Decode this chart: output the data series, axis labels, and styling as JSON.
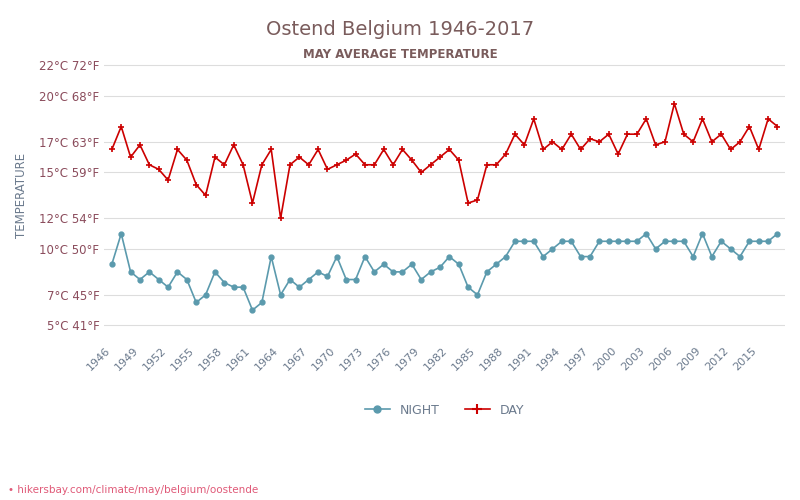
{
  "title": "Ostend Belgium 1946-2017",
  "subtitle": "MAY AVERAGE TEMPERATURE",
  "ylabel": "TEMPERATURE",
  "url_text": "hikersbay.com/climate/may/belgium/oostende",
  "years": [
    1946,
    1947,
    1948,
    1949,
    1950,
    1951,
    1952,
    1953,
    1954,
    1955,
    1956,
    1957,
    1958,
    1959,
    1960,
    1961,
    1962,
    1963,
    1964,
    1965,
    1966,
    1967,
    1968,
    1969,
    1970,
    1971,
    1972,
    1973,
    1974,
    1975,
    1976,
    1977,
    1978,
    1979,
    1980,
    1981,
    1982,
    1983,
    1984,
    1985,
    1986,
    1987,
    1988,
    1989,
    1990,
    1991,
    1992,
    1993,
    1994,
    1995,
    1996,
    1997,
    1998,
    1999,
    2000,
    2001,
    2002,
    2003,
    2004,
    2005,
    2006,
    2007,
    2008,
    2009,
    2010,
    2011,
    2012,
    2013,
    2014,
    2015,
    2016,
    2017
  ],
  "day_temps": [
    16.5,
    18.0,
    16.0,
    16.8,
    15.5,
    15.2,
    14.5,
    16.5,
    15.8,
    14.2,
    13.5,
    16.0,
    15.5,
    16.8,
    15.5,
    13.0,
    15.5,
    16.5,
    12.0,
    15.5,
    16.0,
    15.5,
    16.5,
    15.2,
    15.5,
    15.8,
    16.2,
    15.5,
    15.5,
    16.5,
    15.5,
    16.5,
    15.8,
    15.0,
    15.5,
    16.0,
    16.5,
    15.8,
    13.0,
    13.2,
    15.5,
    15.5,
    16.2,
    17.5,
    16.8,
    18.5,
    16.5,
    17.0,
    16.5,
    17.5,
    16.5,
    17.2,
    17.0,
    17.5,
    16.2,
    17.5,
    17.5,
    18.5,
    16.8,
    17.0,
    19.5,
    17.5,
    17.0,
    18.5,
    17.0,
    17.5,
    16.5,
    17.0,
    18.0,
    16.5,
    18.5,
    18.0
  ],
  "night_temps": [
    9.0,
    11.0,
    8.5,
    8.0,
    8.5,
    8.0,
    7.5,
    8.5,
    8.0,
    6.5,
    7.0,
    8.5,
    7.8,
    7.5,
    7.5,
    6.0,
    6.5,
    9.5,
    7.0,
    8.0,
    7.5,
    8.0,
    8.5,
    8.2,
    9.5,
    8.0,
    8.0,
    9.5,
    8.5,
    9.0,
    8.5,
    8.5,
    9.0,
    8.0,
    8.5,
    8.8,
    9.5,
    9.0,
    7.5,
    7.0,
    8.5,
    9.0,
    9.5,
    10.5,
    10.5,
    10.5,
    9.5,
    10.0,
    10.5,
    10.5,
    9.5,
    9.5,
    10.5,
    10.5,
    10.5,
    10.5,
    10.5,
    11.0,
    10.0,
    10.5,
    10.5,
    10.5,
    9.5,
    11.0,
    9.5,
    10.5,
    10.0,
    9.5,
    10.5,
    10.5,
    10.5,
    11.0
  ],
  "day_color": "#cc0000",
  "night_color": "#5b9aad",
  "title_color": "#7a5c5c",
  "subtitle_color": "#7a5c5c",
  "axis_label_color": "#6b7a8d",
  "tick_label_color": "#8b4c5c",
  "background_color": "#ffffff",
  "grid_color": "#dddddd",
  "yticks_c": [
    5,
    7,
    10,
    12,
    15,
    17,
    20,
    22
  ],
  "yticks_f": [
    41,
    45,
    50,
    54,
    59,
    63,
    68,
    72
  ],
  "ylim": [
    4,
    23
  ],
  "xtick_step": 3
}
